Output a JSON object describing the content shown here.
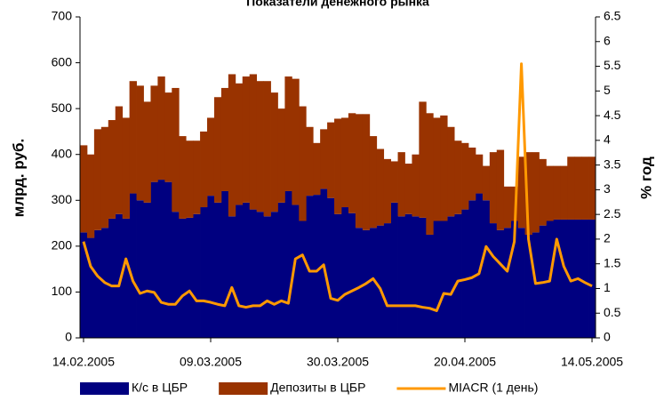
{
  "chart_data": {
    "type": "stacked-area-line",
    "title": "Показатели денежного рынка",
    "ylabel": "млрд. руб.",
    "y2label": "% год",
    "categories": [
      "14.02.2005",
      null,
      null,
      null,
      null,
      null,
      null,
      null,
      null,
      null,
      null,
      null,
      null,
      null,
      null,
      null,
      null,
      null,
      "09.03.2005",
      null,
      null,
      null,
      null,
      null,
      null,
      null,
      null,
      null,
      null,
      null,
      null,
      null,
      null,
      null,
      null,
      null,
      "30.03.2005",
      null,
      null,
      null,
      null,
      null,
      null,
      null,
      null,
      null,
      null,
      null,
      null,
      null,
      null,
      null,
      null,
      null,
      "20.04.2005",
      null,
      null,
      null,
      null,
      null,
      null,
      null,
      null,
      null,
      null,
      null,
      null,
      null,
      null,
      null,
      null,
      null,
      "14.05.2005"
    ],
    "series": [
      {
        "name": "К/с в ЦБР",
        "color": "#000080",
        "kind": "area",
        "values": [
          230,
          218,
          235,
          240,
          260,
          270,
          260,
          315,
          300,
          295,
          340,
          345,
          340,
          275,
          260,
          262,
          270,
          285,
          310,
          295,
          320,
          265,
          290,
          295,
          280,
          275,
          265,
          275,
          295,
          320,
          290,
          255,
          310,
          312,
          325,
          305,
          270,
          285,
          272,
          240,
          235,
          240,
          245,
          250,
          295,
          265,
          270,
          265,
          262,
          225,
          255,
          255,
          265,
          270,
          280,
          300,
          315,
          300,
          250,
          235,
          240,
          255,
          240,
          225,
          230,
          245,
          255,
          258,
          258,
          258,
          258,
          258,
          258
        ]
      },
      {
        "name": "Депозиты в ЦБР",
        "color": "#993300",
        "kind": "area",
        "values": [
          190,
          182,
          220,
          220,
          215,
          235,
          220,
          245,
          250,
          220,
          210,
          225,
          195,
          270,
          180,
          168,
          160,
          165,
          170,
          230,
          225,
          310,
          265,
          275,
          295,
          285,
          295,
          260,
          205,
          250,
          275,
          250,
          150,
          113,
          130,
          165,
          208,
          195,
          218,
          248,
          253,
          200,
          167,
          140,
          90,
          140,
          110,
          135,
          253,
          265,
          225,
          230,
          195,
          160,
          145,
          115,
          85,
          75,
          155,
          175,
          90,
          75,
          155,
          180,
          175,
          145,
          120,
          117,
          117,
          137,
          137,
          137,
          137
        ]
      },
      {
        "name": "MIACR (1 день)",
        "color": "#ff9900",
        "kind": "line",
        "axis": "y2",
        "values": [
          1.95,
          1.45,
          1.25,
          1.12,
          1.05,
          1.05,
          1.6,
          1.15,
          0.9,
          0.95,
          0.92,
          0.72,
          0.68,
          0.68,
          0.85,
          0.95,
          0.75,
          0.75,
          0.72,
          0.68,
          0.65,
          1.02,
          0.65,
          0.62,
          0.65,
          0.65,
          0.75,
          0.68,
          0.75,
          0.7,
          1.6,
          1.68,
          1.35,
          1.35,
          1.48,
          0.8,
          0.76,
          0.88,
          0.95,
          1.02,
          1.1,
          1.2,
          1.0,
          0.65,
          0.65,
          0.65,
          0.65,
          0.65,
          0.62,
          0.6,
          0.55,
          0.9,
          0.88,
          1.15,
          1.18,
          1.22,
          1.3,
          1.85,
          1.65,
          1.5,
          1.35,
          1.95,
          5.55,
          2.0,
          1.1,
          1.12,
          1.15,
          2.0,
          1.45,
          1.15,
          1.2,
          1.12,
          1.05
        ]
      }
    ],
    "ylim": [
      0,
      700
    ],
    "yticks": [
      0,
      100,
      200,
      300,
      400,
      500,
      600,
      700
    ],
    "y2lim": [
      0,
      6.5
    ],
    "y2ticks": [
      0,
      0.5,
      1,
      1.5,
      2,
      2.5,
      3,
      3.5,
      4,
      4.5,
      5,
      5.5,
      6,
      6.5
    ],
    "legend": "bottom"
  }
}
